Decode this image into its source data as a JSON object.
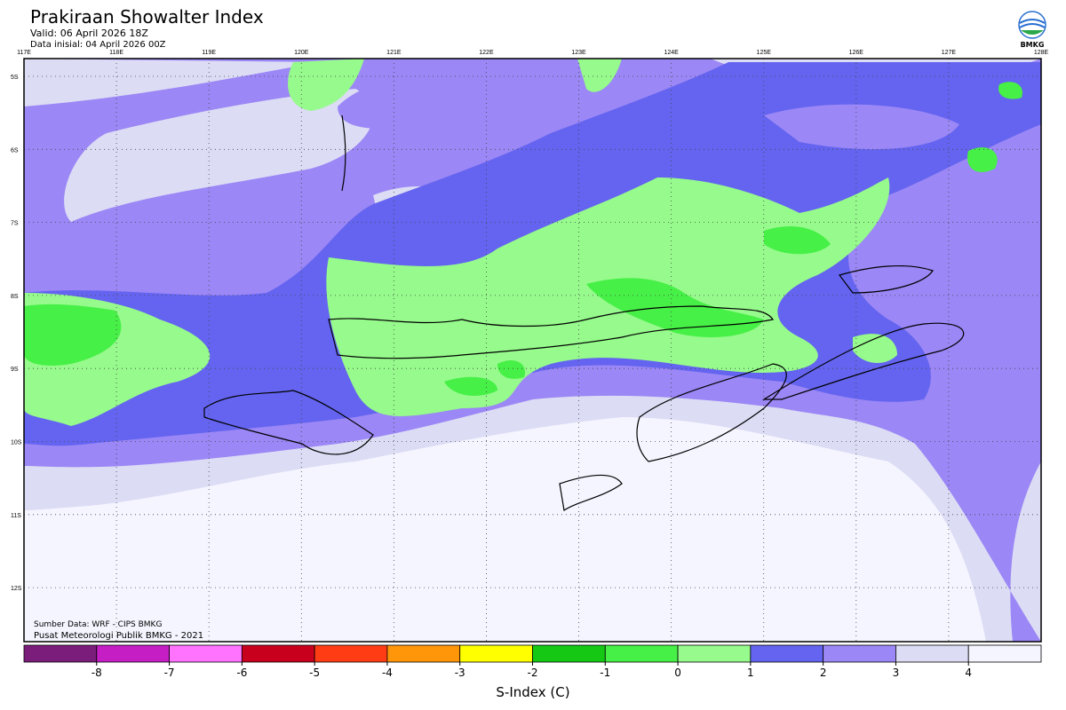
{
  "header": {
    "title": "Prakiraan Showalter Index",
    "valid": "Valid: 06 April 2026 18Z",
    "init": "Data inisial: 04 April 2026 00Z",
    "logo": "BMKG"
  },
  "map": {
    "lon_labels": [
      "117E",
      "118E",
      "119E",
      "120E",
      "121E",
      "122E",
      "123E",
      "124E",
      "125E",
      "126E",
      "127E",
      "128E"
    ],
    "lat_labels": [
      "5S",
      "6S",
      "7S",
      "8S",
      "9S",
      "10S",
      "11S",
      "12S"
    ],
    "source": "Sumber Data: WRF - CIPS BMKG",
    "credit": "Pusat Meteorologi Publik BMKG - 2021"
  },
  "colorbar": {
    "title": "S-Index (C)",
    "lim": [
      -9,
      5
    ],
    "ticks": [
      -8,
      -7,
      -6,
      -5,
      -4,
      -3,
      -2,
      -1,
      0,
      1,
      2,
      3,
      4
    ],
    "colors": [
      "#7b1d7b",
      "#c41ec4",
      "#ff73ff",
      "#c8001e",
      "#ff3c14",
      "#ff960a",
      "#ffff00",
      "#14c814",
      "#46f046",
      "#96fa8c",
      "#6464f0",
      "#9b87f5",
      "#dcdcf5",
      "#f5f5ff"
    ]
  }
}
